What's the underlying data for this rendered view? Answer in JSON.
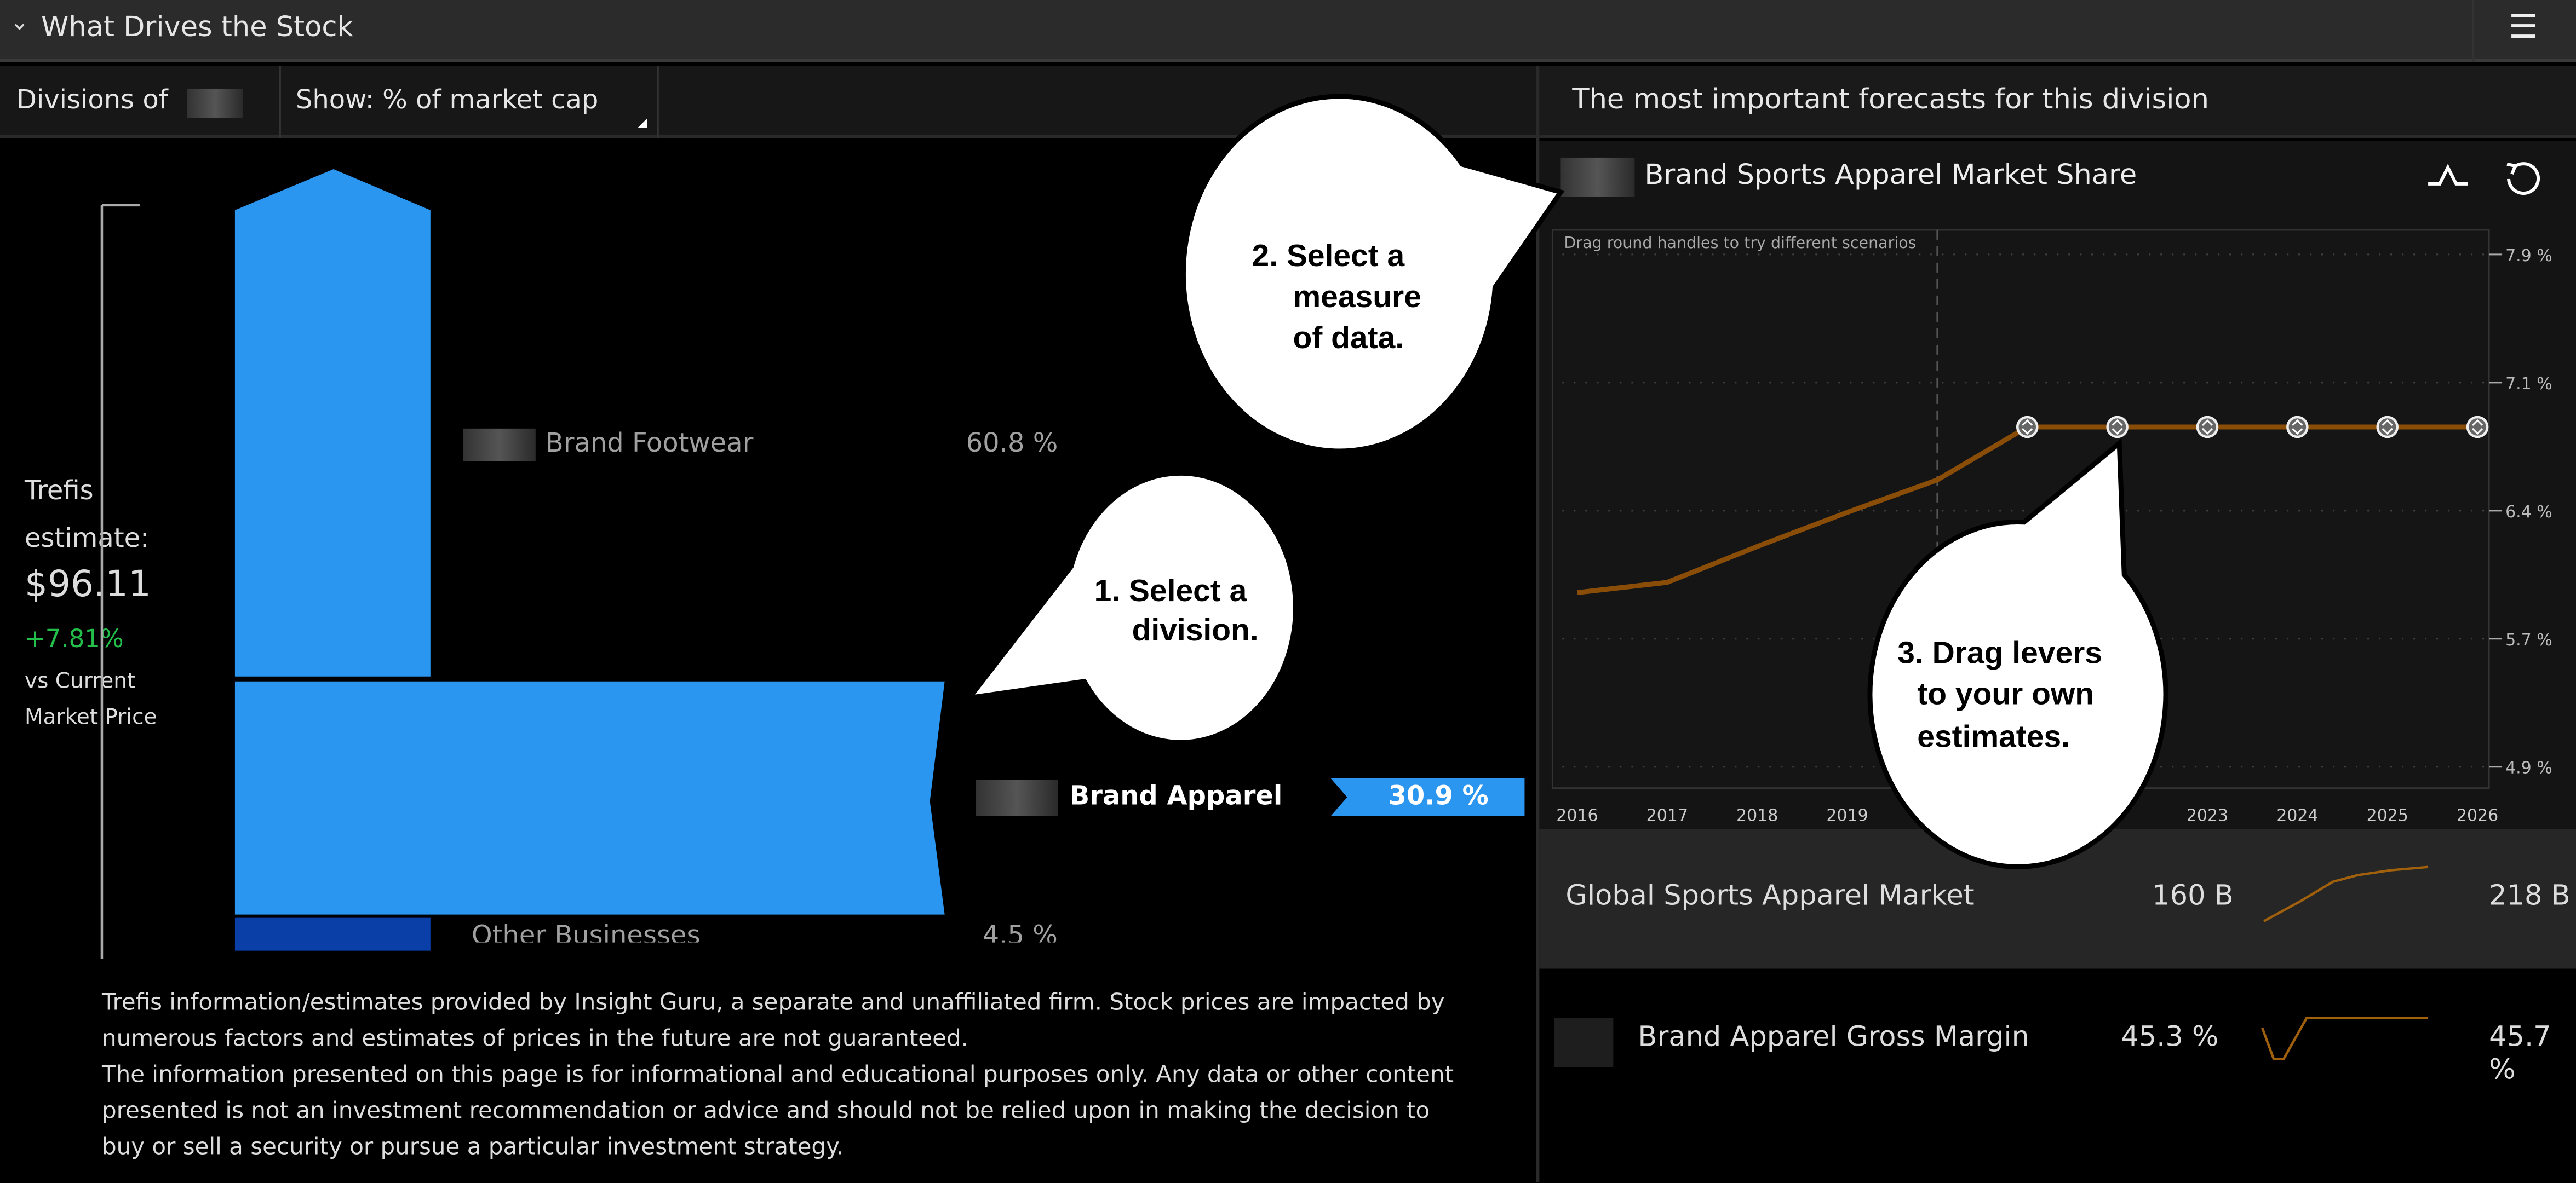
{
  "header": {
    "title": "What Drives the Stock",
    "collapse_icon": "chevron-down-icon",
    "menu_icon": "list-icon"
  },
  "left": {
    "divisions_label": "Divisions of",
    "show_label": "Show: % of market cap",
    "estimate": {
      "line1": "Trefis",
      "line2": "estimate:",
      "price": "$96.11",
      "change": "+7.81%",
      "vs1": "vs Current",
      "vs2": "Market Price"
    },
    "divisions": [
      {
        "name": "Brand Footwear",
        "value": "60.8 %"
      },
      {
        "name": "Brand Apparel",
        "value": "30.9 %",
        "selected": true
      },
      {
        "name": "Other Businesses",
        "value": "4.5 %"
      }
    ],
    "disclaimer1": "Trefis information/estimates provided by Insight Guru, a separate and unaffiliated firm. Stock prices are impacted by numerous factors and estimates of prices in the future are not guaranteed.",
    "disclaimer2": "The information presented on this page is for informational and educational purposes only. Any data or other content presented is not an investment recommendation or advice and should not be relied upon in making the decision to buy or sell a security or pursue a particular investment strategy."
  },
  "right": {
    "title": "The most important forecasts for this division",
    "forecast_title": "Brand Sports Apparel Market Share",
    "hint": "Drag round handles to try different scenarios",
    "rows": [
      {
        "name": "Global Sports Apparel Market",
        "start": "160 B",
        "end": "218 B"
      },
      {
        "name": "Brand Apparel Gross Margin",
        "start": "45.3 %",
        "end": "45.7 %"
      }
    ]
  },
  "callouts": {
    "c1": [
      "1. Select a",
      "division."
    ],
    "c2": [
      "2. Select a",
      "measure",
      "of data."
    ],
    "c3": [
      "3. Drag levers",
      "to your own",
      "estimates."
    ]
  },
  "colors": {
    "bar": "#2a96f0",
    "other": "#0a3fa8",
    "line": "#8a4d08",
    "positive": "#22c04a"
  },
  "chart_data": {
    "type": "line",
    "title": "Brand Sports Apparel Market Share",
    "x": [
      2016,
      2017,
      2018,
      2019,
      2020,
      2021,
      2022,
      2023,
      2024,
      2025,
      2026
    ],
    "x_tick_labels": [
      "2016",
      "2017",
      "2018",
      "2019",
      "",
      "",
      "",
      "2023",
      "2024",
      "2025",
      "2026"
    ],
    "values": [
      5.92,
      5.98,
      6.19,
      6.39,
      6.58,
      6.89,
      6.89,
      6.89,
      6.89,
      6.89,
      6.89
    ],
    "ylim": [
      4.9,
      7.9
    ],
    "y_ticks": [
      "7.9 %",
      "7.1 %",
      "6.4 %",
      "5.7 %",
      "4.9 %"
    ],
    "forecast_start": 2020,
    "grid": true
  }
}
